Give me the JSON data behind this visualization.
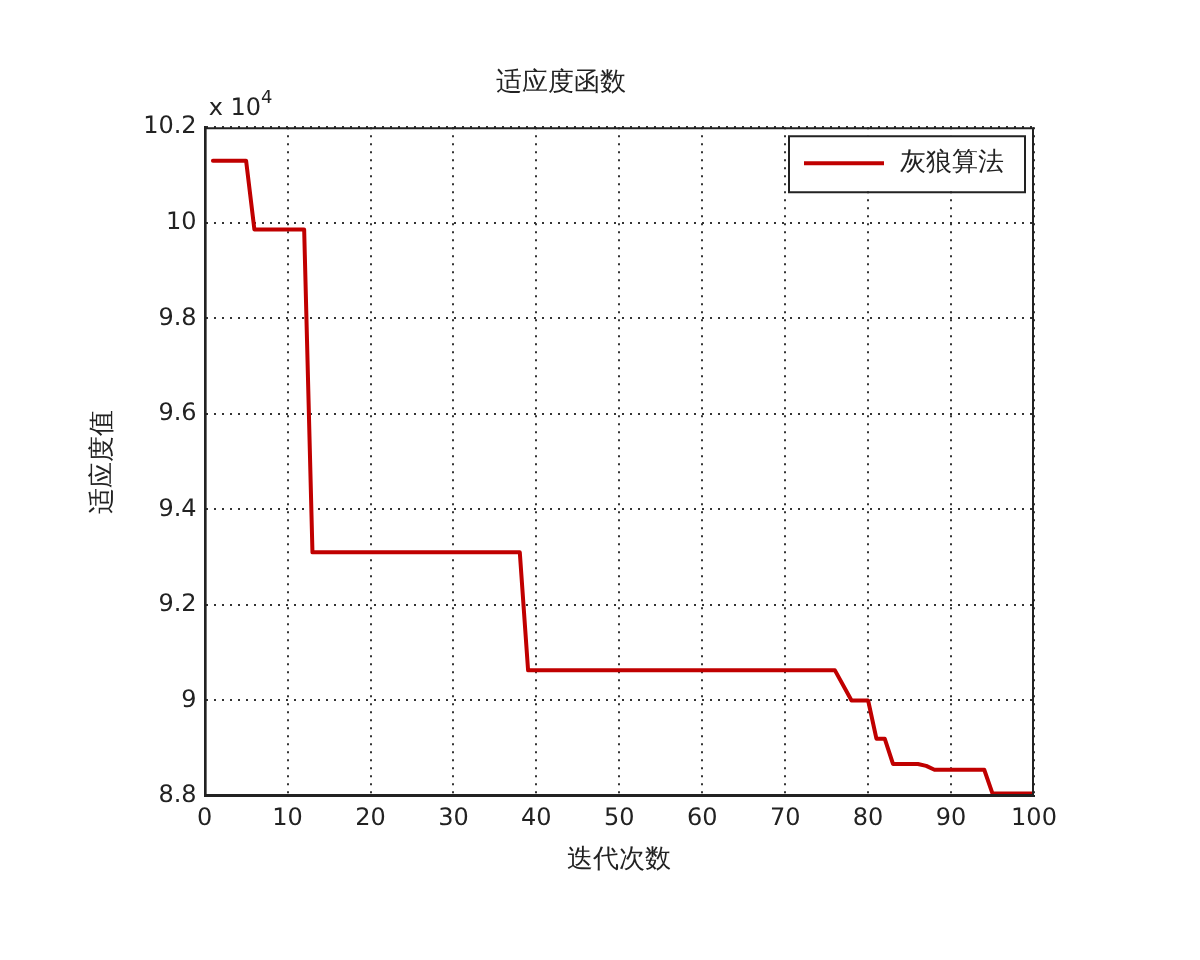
{
  "chart_data": {
    "type": "line",
    "title": "适应度函数",
    "xlabel": "迭代次数",
    "ylabel": "适应度值",
    "annotations": [
      "x 10$^{4}$"
    ],
    "series": [
      {
        "name": "灰狼算法",
        "color": "#c00000",
        "x": [
          1,
          5,
          6,
          12,
          13,
          38,
          39,
          76,
          78,
          80,
          81,
          82,
          83,
          86,
          87,
          88,
          94,
          95,
          100
        ],
        "values": [
          10.13,
          10.13,
          9.986,
          9.986,
          9.31,
          9.31,
          9.063,
          9.063,
          9.0,
          9.0,
          8.92,
          8.92,
          8.867,
          8.867,
          8.863,
          8.855,
          8.855,
          8.805,
          8.805
        ]
      }
    ],
    "xlim": [
      0,
      100
    ],
    "xticks": [
      0,
      10,
      20,
      30,
      40,
      50,
      60,
      70,
      80,
      90,
      100
    ],
    "ylim": [
      8.8,
      10.2
    ],
    "yticks": [
      8.8,
      9,
      9.2,
      9.4,
      9.6,
      9.8,
      10,
      10.2
    ],
    "grid": true,
    "legend": "top right"
  }
}
